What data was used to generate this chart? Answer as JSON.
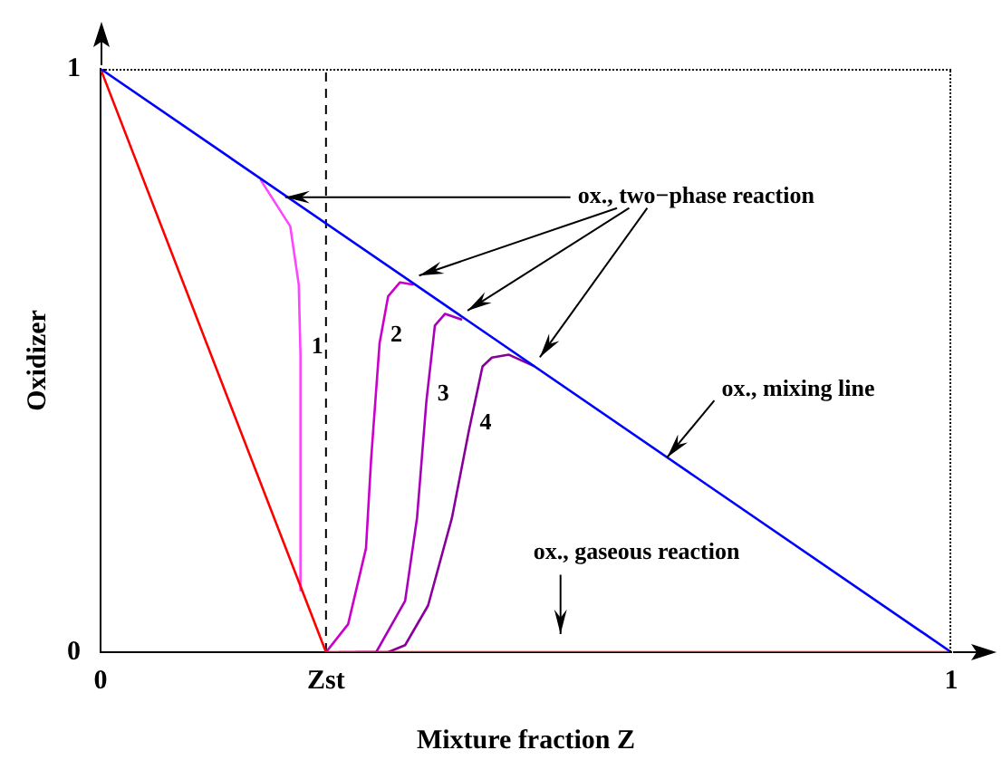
{
  "chart_data": {
    "type": "line",
    "xlabel": "Mixture fraction Z",
    "ylabel": "Oxidizer",
    "xlim": [
      0,
      1
    ],
    "ylim": [
      0,
      1
    ],
    "xticks": [
      0,
      {
        "value": 0.265,
        "label": "Zst"
      },
      1
    ],
    "yticks": [
      0,
      1
    ],
    "grid": false,
    "legend": false,
    "marker": "none",
    "line_style": "solid",
    "series": [
      {
        "color": "#0000ff",
        "x": [
          0,
          1
        ],
        "values": [
          1,
          0
        ]
      },
      {
        "color": "#ff0000",
        "x": [
          0,
          0.265,
          1
        ],
        "values": [
          1,
          0,
          0
        ]
      },
      {
        "color": "#ff44ff",
        "x": [
          0.188,
          0.223,
          0.233,
          0.235,
          0.235,
          0.235
        ],
        "values": [
          0.81,
          0.73,
          0.63,
          0.51,
          0.12,
          0.106
        ]
      },
      {
        "color": "#cc00cc",
        "x": [
          0.265,
          0.291,
          0.312,
          0.318,
          0.328,
          0.338,
          0.352,
          0.368
        ],
        "values": [
          0,
          0.048,
          0.178,
          0.33,
          0.53,
          0.61,
          0.634,
          0.63
        ]
      },
      {
        "color": "#aa00bb",
        "x": [
          0.28,
          0.324,
          0.358,
          0.372,
          0.383,
          0.393,
          0.405,
          0.425
        ],
        "values": [
          0,
          0,
          0.088,
          0.23,
          0.43,
          0.56,
          0.58,
          0.57
        ]
      },
      {
        "color": "#880099",
        "x": [
          0.3,
          0.338,
          0.358,
          0.385,
          0.413,
          0.433,
          0.449,
          0.46,
          0.48,
          0.51
        ],
        "values": [
          0,
          0,
          0.012,
          0.08,
          0.23,
          0.38,
          0.49,
          0.505,
          0.51,
          0.49
        ]
      }
    ],
    "ref_lines": [
      {
        "axis": "x",
        "value": 0.265,
        "line_style": "dashed",
        "color": "#000000"
      }
    ],
    "annotations": [
      {
        "text": "ox., two−phase reaction",
        "x": 0.217,
        "y": 0.78
      },
      {
        "text": "ox., mixing line",
        "x": 0.666,
        "y": 0.334
      },
      "ox., gaseous reaction",
      "1",
      "2",
      "3",
      "4"
    ]
  }
}
